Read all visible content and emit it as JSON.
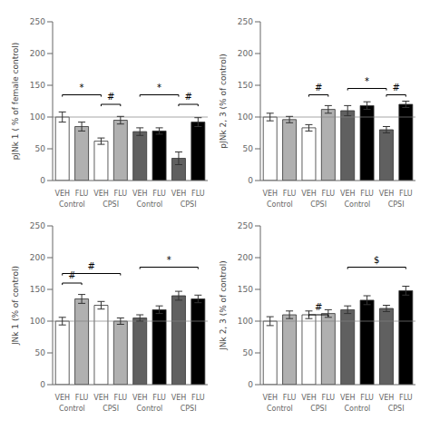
{
  "chart_data": [
    {
      "type": "bar",
      "y_label": "pJNk 1 ( % of female control)",
      "categories": [
        "VEH",
        "FLU",
        "VEH",
        "FLU",
        "VEH",
        "FLU",
        "VEH",
        "FLU"
      ],
      "values": [
        100,
        85,
        62,
        95,
        77,
        78,
        35,
        92
      ],
      "errors": [
        8,
        7,
        5,
        6,
        6,
        5,
        10,
        7
      ],
      "colors": [
        "#ffffff",
        "#b0b0b0",
        "#ffffff",
        "#b0b0b0",
        "#606060",
        "#000000",
        "#606060",
        "#000000"
      ],
      "ylim": [
        0,
        250
      ],
      "yticks": [
        0,
        50,
        100,
        150,
        200,
        250
      ],
      "grid": false,
      "hline": 100,
      "annotations": [
        {
          "text": "Control",
          "x1": 0,
          "x2": 1
        },
        {
          "text": "CPSI",
          "x1": 2,
          "x2": 3
        },
        {
          "text": "Control",
          "x1": 4,
          "x2": 5
        },
        {
          "text": "CPSI",
          "x1": 6,
          "x2": 7
        },
        {
          "text": "*",
          "x1": 0,
          "x2": 2,
          "y": 135
        },
        {
          "text": "#",
          "x1": 2,
          "x2": 3,
          "y": 120
        },
        {
          "text": "*",
          "x1": 4,
          "x2": 6,
          "y": 135
        },
        {
          "text": "#",
          "x1": 6,
          "x2": 7,
          "y": 120
        }
      ]
    },
    {
      "type": "bar",
      "y_label": "pJNk 2, 3 (% of control)",
      "categories": [
        "VEH",
        "FLU",
        "VEH",
        "FLU",
        "VEH",
        "FLU",
        "VEH",
        "FLU"
      ],
      "values": [
        100,
        96,
        83,
        112,
        110,
        118,
        80,
        120
      ],
      "errors": [
        6,
        5,
        5,
        6,
        8,
        6,
        5,
        5
      ],
      "colors": [
        "#ffffff",
        "#b0b0b0",
        "#ffffff",
        "#b0b0b0",
        "#606060",
        "#000000",
        "#606060",
        "#000000"
      ],
      "ylim": [
        0,
        250
      ],
      "yticks": [
        0,
        50,
        100,
        150,
        200,
        250
      ],
      "grid": false,
      "hline": 100,
      "annotations": [
        {
          "text": "Control",
          "x1": 0,
          "x2": 1
        },
        {
          "text": "CPSI",
          "x1": 2,
          "x2": 3
        },
        {
          "text": "Control",
          "x1": 4,
          "x2": 5
        },
        {
          "text": "CPSI",
          "x1": 6,
          "x2": 7
        },
        {
          "text": "#",
          "x1": 2,
          "x2": 3,
          "y": 135
        },
        {
          "text": "*",
          "x1": 4,
          "x2": 6,
          "y": 145
        },
        {
          "text": "#",
          "x1": 6,
          "x2": 7,
          "y": 135
        }
      ]
    },
    {
      "type": "bar",
      "y_label": "JNk 1 (% of control)",
      "categories": [
        "VEH",
        "FLU",
        "VEH",
        "FLU",
        "VEH",
        "FLU",
        "VEH",
        "FLU"
      ],
      "values": [
        100,
        135,
        125,
        100,
        105,
        118,
        140,
        135
      ],
      "errors": [
        6,
        7,
        6,
        5,
        5,
        6,
        7,
        6
      ],
      "colors": [
        "#ffffff",
        "#b0b0b0",
        "#ffffff",
        "#b0b0b0",
        "#606060",
        "#000000",
        "#606060",
        "#000000"
      ],
      "ylim": [
        0,
        250
      ],
      "yticks": [
        0,
        50,
        100,
        150,
        200,
        250
      ],
      "grid": false,
      "hline": 100,
      "annotations": [
        {
          "text": "Control",
          "x1": 0,
          "x2": 1
        },
        {
          "text": "CPSI",
          "x1": 2,
          "x2": 3
        },
        {
          "text": "Control",
          "x1": 4,
          "x2": 5
        },
        {
          "text": "CPSI",
          "x1": 6,
          "x2": 7
        },
        {
          "text": "#",
          "x1": 0,
          "x2": 1,
          "y": 160
        },
        {
          "text": "#",
          "x1": 0,
          "x2": 3,
          "y": 175
        },
        {
          "text": "*",
          "x1": 4,
          "x2": 7,
          "y": 185
        }
      ]
    },
    {
      "type": "bar",
      "y_label": "JNk 2, 3 (% of control)",
      "categories": [
        "VEH",
        "FLU",
        "VEH",
        "FLU",
        "VEH",
        "FLU",
        "VEH",
        "FLU"
      ],
      "values": [
        100,
        110,
        110,
        112,
        118,
        133,
        120,
        148
      ],
      "errors": [
        7,
        6,
        6,
        6,
        6,
        7,
        5,
        7
      ],
      "colors": [
        "#ffffff",
        "#b0b0b0",
        "#ffffff",
        "#b0b0b0",
        "#606060",
        "#000000",
        "#606060",
        "#000000"
      ],
      "ylim": [
        0,
        250
      ],
      "yticks": [
        0,
        50,
        100,
        150,
        200,
        250
      ],
      "grid": false,
      "hline": 100,
      "annotations": [
        {
          "text": "Control",
          "x1": 0,
          "x2": 1
        },
        {
          "text": "CPSI",
          "x1": 2,
          "x2": 3
        },
        {
          "text": "Control",
          "x1": 4,
          "x2": 5
        },
        {
          "text": "CPSI",
          "x1": 6,
          "x2": 7
        },
        {
          "text": "#",
          "x1": 2,
          "x2": 3,
          "y": 110
        },
        {
          "text": "$",
          "x1": 4,
          "x2": 7,
          "y": 185
        }
      ]
    }
  ]
}
